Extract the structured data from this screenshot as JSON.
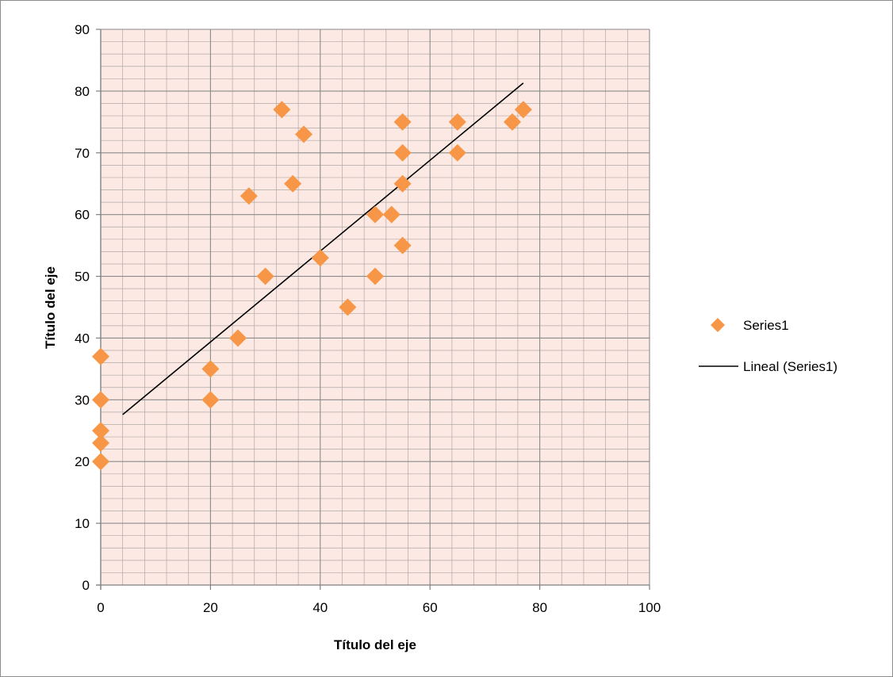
{
  "chart_data": {
    "type": "scatter",
    "title": "",
    "xlabel": "Título del eje",
    "ylabel": "Título del eje",
    "xlim": [
      0,
      100
    ],
    "ylim": [
      0,
      90
    ],
    "x_ticks": [
      0,
      20,
      40,
      60,
      80,
      100
    ],
    "y_ticks": [
      0,
      10,
      20,
      30,
      40,
      50,
      60,
      70,
      80,
      90
    ],
    "x_tick_labels": [
      "0",
      "20",
      "40",
      "60",
      "80",
      "100"
    ],
    "y_tick_labels": [
      "0",
      "10",
      "20",
      "30",
      "40",
      "50",
      "60",
      "70",
      "80",
      "90"
    ],
    "grid": "major and minor",
    "legend_position": "right",
    "colors": {
      "plot_background": "#fce9e3",
      "minor_grid": "#b0a8a6",
      "major_grid": "#8a8a8a",
      "marker": "#f79646",
      "trendline": "#000000"
    },
    "series": [
      {
        "name": "Series1",
        "marker": "diamond",
        "x": [
          0,
          0,
          0,
          0,
          0,
          20,
          20,
          25,
          27,
          30,
          33,
          35,
          37,
          40,
          45,
          50,
          50,
          53,
          55,
          55,
          55,
          55,
          65,
          65,
          75,
          77
        ],
        "y": [
          20,
          23,
          25,
          30,
          37,
          30,
          35,
          40,
          63,
          50,
          77,
          65,
          73,
          53,
          45,
          50,
          60,
          60,
          55,
          65,
          70,
          75,
          70,
          75,
          75,
          77
        ]
      }
    ],
    "trendline": {
      "name": "Lineal (Series1)",
      "type": "linear",
      "x": [
        4,
        77
      ],
      "y": [
        27.6,
        81.3
      ]
    }
  }
}
